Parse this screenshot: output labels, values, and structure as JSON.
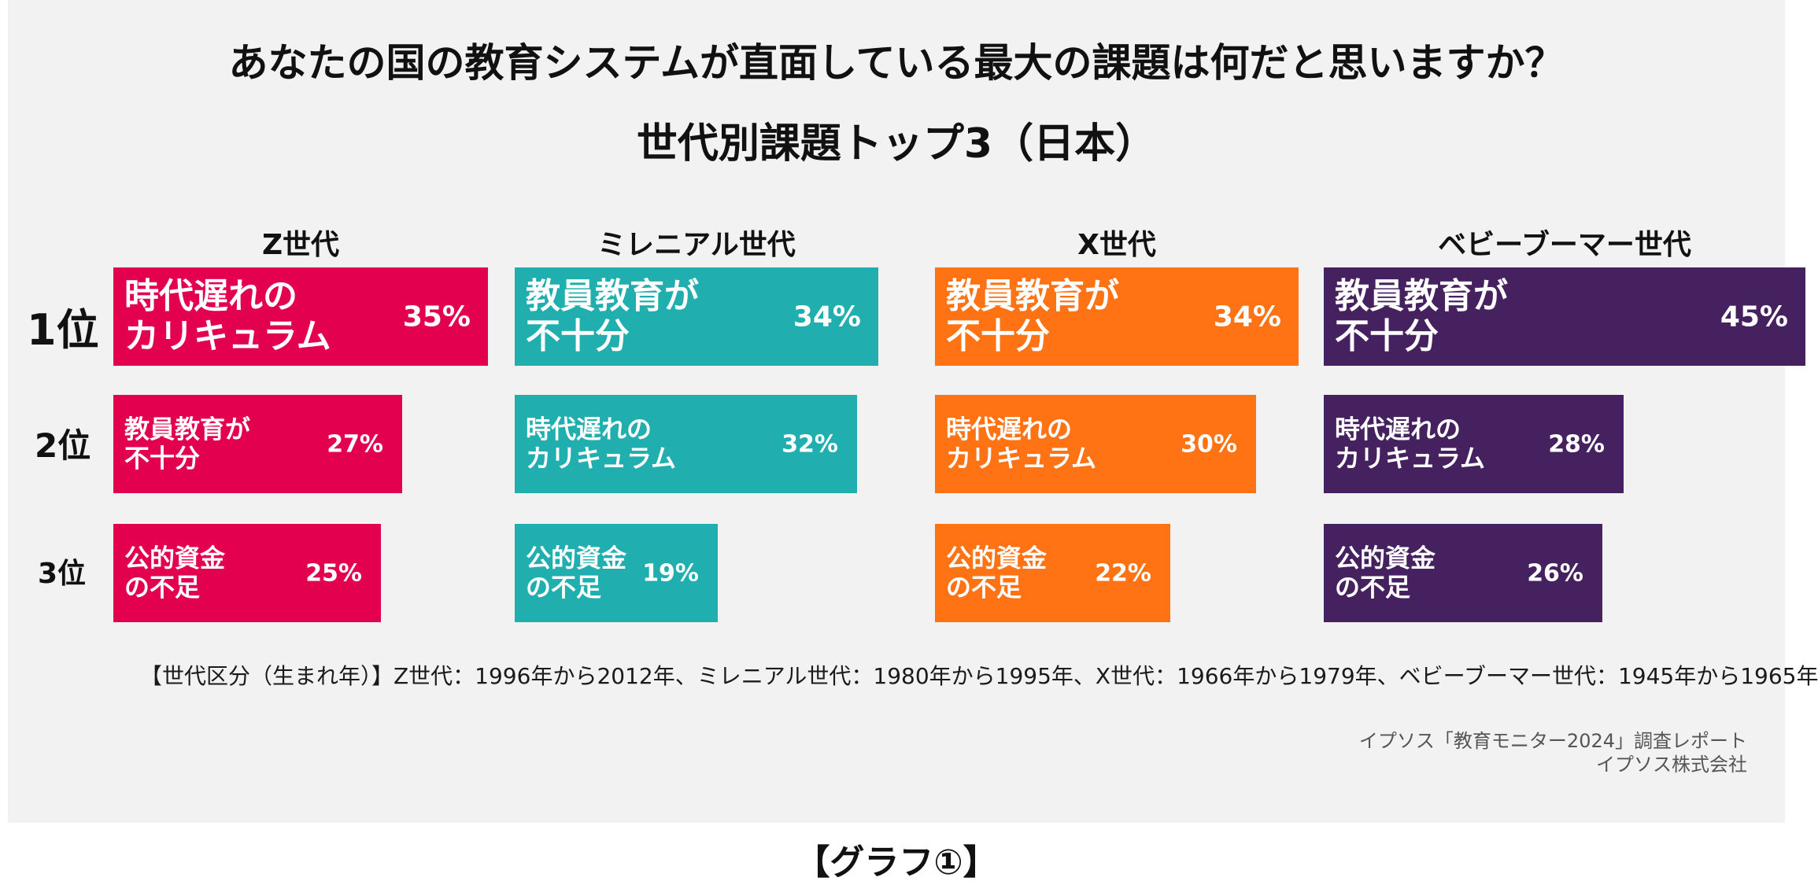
{
  "title": "あなたの国の教育システムが直面している最大の課題は何だと思いますか？",
  "subtitle": "世代別課題トップ3（日本）",
  "ranks": [
    "1位",
    "2位",
    "3位"
  ],
  "footnote": "【世代区分（生まれ年）】Z世代：1996年から2012年、ミレニアル世代：1980年から1995年、X世代：1966年から1979年、ベビーブーマー世代：1945年から1965年",
  "source_line1": "イプソス「教育モニター2024」調査レポート",
  "source_line2": "イプソス株式会社",
  "caption": "【グラフ①】",
  "chart_data": {
    "type": "bar",
    "title": "世代別課題トップ3（日本）",
    "unit": "%",
    "groups": [
      {
        "name": "Z世代",
        "color": "#E3004F",
        "items": [
          {
            "rank": "1位",
            "lines": [
              "時代遅れの",
              "カリキュラム"
            ],
            "value": 35,
            "label": "35%"
          },
          {
            "rank": "2位",
            "lines": [
              "教員教育が",
              "不十分"
            ],
            "value": 27,
            "label": "27%"
          },
          {
            "rank": "3位",
            "lines": [
              "公的資金",
              "の不足"
            ],
            "value": 25,
            "label": "25%"
          }
        ]
      },
      {
        "name": "ミレニアル世代",
        "color": "#20AFAE",
        "items": [
          {
            "rank": "1位",
            "lines": [
              "教員教育が",
              "不十分"
            ],
            "value": 34,
            "label": "34%"
          },
          {
            "rank": "2位",
            "lines": [
              "時代遅れの",
              "カリキュラム"
            ],
            "value": 32,
            "label": "32%"
          },
          {
            "rank": "3位",
            "lines": [
              "公的資金",
              "の不足"
            ],
            "value": 19,
            "label": "19%"
          }
        ]
      },
      {
        "name": "X世代",
        "color": "#FF7314",
        "items": [
          {
            "rank": "1位",
            "lines": [
              "教員教育が",
              "不十分"
            ],
            "value": 34,
            "label": "34%"
          },
          {
            "rank": "2位",
            "lines": [
              "時代遅れの",
              "カリキュラム"
            ],
            "value": 30,
            "label": "30%"
          },
          {
            "rank": "3位",
            "lines": [
              "公的資金",
              "の不足"
            ],
            "value": 22,
            "label": "22%"
          }
        ]
      },
      {
        "name": "ベビーブーマー世代",
        "color": "#45225F",
        "items": [
          {
            "rank": "1位",
            "lines": [
              "教員教育が",
              "不十分"
            ],
            "value": 45,
            "label": "45%"
          },
          {
            "rank": "2位",
            "lines": [
              "時代遅れの",
              "カリキュラム"
            ],
            "value": 28,
            "label": "28%"
          },
          {
            "rank": "3位",
            "lines": [
              "公的資金",
              "の不足"
            ],
            "value": 26,
            "label": "26%"
          }
        ]
      }
    ]
  }
}
